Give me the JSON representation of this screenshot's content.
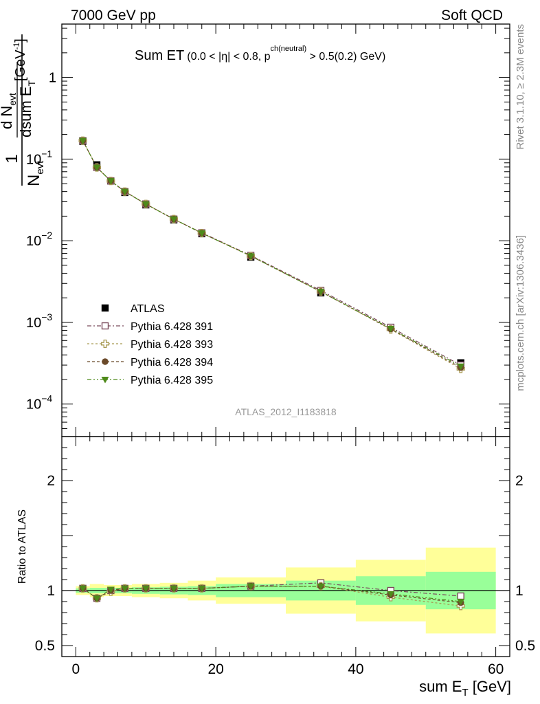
{
  "header": {
    "left": "7000 GeV pp",
    "right": "Soft QCD"
  },
  "side_labels": {
    "rivet": "Rivet 3.1.10, ≥ 2.3M events",
    "mcplots": "mcplots.cern.ch [arXiv:1306.3436]"
  },
  "watermark": "ATLAS_2012_I1183818",
  "chart_data": [
    {
      "type": "scatter",
      "panel": "main",
      "title_main": "Sum ET",
      "title_sub": "(0.0 < |η| < 0.8, p",
      "title_sup": "ch(neutral)",
      "title_sub_end": " > 0.5(0.2) GeV)",
      "ylabel": {
        "one": "1",
        "n": "N",
        "n_sub": "evt",
        "dn": "d N",
        "dn_sub": "evt",
        "dsum": "dsum E",
        "dsum_sub": "T",
        "unit": "[GeV",
        "unit_sup": "-1",
        "unit_end": "]"
      },
      "y_log_scale": true,
      "ylim": [
        4e-05,
        4.5
      ],
      "xlim": [
        -2,
        62
      ],
      "y_ticks": [
        {
          "v": 1,
          "label": "1"
        },
        {
          "v": 0.1,
          "base": "10",
          "exp": "−1"
        },
        {
          "v": 0.01,
          "base": "10",
          "exp": "−2"
        },
        {
          "v": 0.001,
          "base": "10",
          "exp": "−3"
        },
        {
          "v": 0.0001,
          "base": "10",
          "exp": "−4"
        }
      ],
      "x": [
        1,
        3,
        5,
        7,
        10,
        14,
        18,
        25,
        35,
        45,
        55
      ],
      "series": [
        {
          "name": "ATLAS",
          "marker": "square-filled",
          "color": "#000000",
          "values": [
            0.165,
            0.085,
            0.054,
            0.039,
            0.0275,
            0.018,
            0.0122,
            0.0063,
            0.0023,
            0.00087,
            0.00032
          ]
        },
        {
          "name": "Pythia 6.428 391",
          "marker": "square-open",
          "color": "#7a4a5a",
          "dash": "6,3,2,3",
          "values": [
            0.168,
            0.079,
            0.054,
            0.04,
            0.0282,
            0.0184,
            0.0125,
            0.0066,
            0.00246,
            0.00087,
            0.0003
          ]
        },
        {
          "name": "Pythia 6.428 393",
          "marker": "cross-open",
          "color": "#a89a52",
          "dash": "3,3",
          "values": [
            0.168,
            0.079,
            0.054,
            0.04,
            0.0282,
            0.0184,
            0.0124,
            0.0065,
            0.00238,
            0.00082,
            0.00027
          ]
        },
        {
          "name": "Pythia 6.428 394",
          "marker": "circle-filled",
          "color": "#6b4a2a",
          "dash": "4,3",
          "values": [
            0.168,
            0.079,
            0.054,
            0.04,
            0.0281,
            0.0184,
            0.0124,
            0.0065,
            0.00238,
            0.00083,
            0.00028
          ]
        },
        {
          "name": "Pythia 6.428 395",
          "marker": "triangle-down-filled",
          "color": "#4e8a1a",
          "dash": "6,3,2,3,2,3",
          "values": [
            0.168,
            0.079,
            0.054,
            0.04,
            0.0281,
            0.0184,
            0.0124,
            0.0065,
            0.00238,
            0.00084,
            0.00029
          ]
        }
      ]
    },
    {
      "type": "scatter",
      "panel": "ratio",
      "ylabel": "Ratio to ATLAS",
      "ylim": [
        0.4,
        2.4
      ],
      "xlim": [
        -2,
        62
      ],
      "xlabel": "sum E",
      "xlabel_sub": "T",
      "xlabel_unit": " [GeV]",
      "x_ticks": [
        0,
        20,
        40,
        60
      ],
      "y_ticks": [
        0.5,
        1,
        2
      ],
      "bands": [
        {
          "x0": 0,
          "x1": 2,
          "stat": 0.02,
          "total": 0.04
        },
        {
          "x0": 2,
          "x1": 4,
          "stat": 0.025,
          "total": 0.06
        },
        {
          "x0": 4,
          "x1": 6,
          "stat": 0.025,
          "total": 0.05
        },
        {
          "x0": 6,
          "x1": 8,
          "stat": 0.025,
          "total": 0.05
        },
        {
          "x0": 8,
          "x1": 12,
          "stat": 0.03,
          "total": 0.06
        },
        {
          "x0": 12,
          "x1": 16,
          "stat": 0.035,
          "total": 0.07
        },
        {
          "x0": 16,
          "x1": 20,
          "stat": 0.04,
          "total": 0.09
        },
        {
          "x0": 20,
          "x1": 30,
          "stat": 0.06,
          "total": 0.12
        },
        {
          "x0": 30,
          "x1": 40,
          "stat": 0.09,
          "total": 0.21
        },
        {
          "x0": 40,
          "x1": 50,
          "stat": 0.13,
          "total": 0.28
        },
        {
          "x0": 50,
          "x1": 60,
          "stat": 0.17,
          "total": 0.39
        }
      ],
      "x": [
        1,
        3,
        5,
        7,
        10,
        14,
        18,
        25,
        35,
        45,
        55
      ],
      "series": [
        {
          "name": "Pythia 6.428 391",
          "marker": "square-open",
          "color": "#7a4a5a",
          "dash": "6,3,2,3",
          "values": [
            1.02,
            0.93,
            1.0,
            1.02,
            1.02,
            1.02,
            1.02,
            1.04,
            1.07,
            1.0,
            0.95
          ]
        },
        {
          "name": "Pythia 6.428 393",
          "marker": "cross-open",
          "color": "#a89a52",
          "dash": "3,3",
          "values": [
            1.02,
            0.93,
            0.99,
            1.02,
            1.02,
            1.02,
            1.02,
            1.04,
            1.04,
            0.94,
            0.86
          ]
        },
        {
          "name": "Pythia 6.428 394",
          "marker": "circle-filled",
          "color": "#6b4a2a",
          "dash": "4,3",
          "values": [
            1.02,
            0.93,
            1.0,
            1.02,
            1.02,
            1.02,
            1.02,
            1.04,
            1.04,
            0.96,
            0.89
          ]
        },
        {
          "name": "Pythia 6.428 395",
          "marker": "triangle-down-filled",
          "color": "#4e8a1a",
          "dash": "6,3,2,3,2,3",
          "values": [
            1.02,
            0.93,
            1.01,
            1.02,
            1.02,
            1.02,
            1.02,
            1.04,
            1.04,
            0.97,
            0.9
          ]
        }
      ]
    }
  ],
  "colors": {
    "band_stat": "#99ff99",
    "band_total": "#ffff99",
    "axis": "#000000",
    "side_text": "#888888",
    "watermark": "#999999"
  }
}
